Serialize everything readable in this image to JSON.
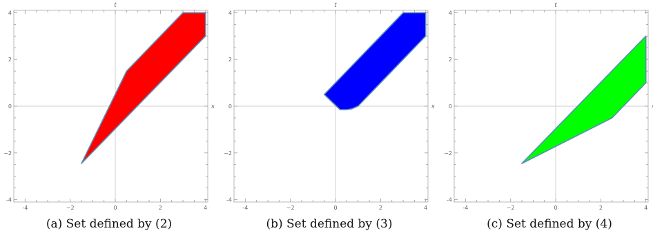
{
  "chart_data": [
    {
      "type": "area",
      "caption": "(a) Set defined by (2)",
      "xlabel": "s",
      "ylabel": "t",
      "xlim": [
        -4.5,
        4.1
      ],
      "ylim": [
        -4.1,
        4.1
      ],
      "xticks": [
        -4,
        -2,
        0,
        2,
        4
      ],
      "yticks": [
        -4,
        -2,
        0,
        2,
        4
      ],
      "x_tick_labels": [
        "-4",
        "−2",
        "0",
        "2",
        "4"
      ],
      "y_tick_labels": [
        "-4",
        "−2",
        "0",
        "2",
        "4"
      ],
      "fill_color": "#ff0000",
      "edge_color": "#5a8fb5",
      "polygon": [
        [
          -1.5,
          -2.45
        ],
        [
          0.5,
          1.5
        ],
        [
          3.0,
          4.0
        ],
        [
          4.0,
          4.0
        ],
        [
          4.0,
          3.0
        ],
        [
          -1.5,
          -2.45
        ]
      ]
    },
    {
      "type": "area",
      "caption": "(b) Set defined by (3)",
      "xlabel": "s",
      "ylabel": "t",
      "xlim": [
        -4.5,
        4.1
      ],
      "ylim": [
        -4.1,
        4.1
      ],
      "xticks": [
        -4,
        -2,
        0,
        2,
        4
      ],
      "yticks": [
        -4,
        -2,
        0,
        2,
        4
      ],
      "x_tick_labels": [
        "-4",
        "−2",
        "0",
        "2",
        "4"
      ],
      "y_tick_labels": [
        "-4",
        "−2",
        "0",
        "2",
        "4"
      ],
      "fill_color": "#0000ff",
      "edge_color": "#5a8fb5",
      "polygon": [
        [
          -0.5,
          0.5
        ],
        [
          3.0,
          4.0
        ],
        [
          4.0,
          4.0
        ],
        [
          4.0,
          3.0
        ],
        [
          1.0,
          0.0
        ],
        [
          0.7,
          -0.12
        ],
        [
          0.5,
          -0.15
        ],
        [
          0.2,
          -0.15
        ],
        [
          -0.5,
          0.5
        ]
      ]
    },
    {
      "type": "area",
      "caption": "(c) Set defined by (4)",
      "xlabel": "s",
      "ylabel": "t",
      "xlim": [
        -4.5,
        4.1
      ],
      "ylim": [
        -4.1,
        4.1
      ],
      "xticks": [
        -4,
        -2,
        0,
        2,
        4
      ],
      "yticks": [
        -4,
        -2,
        0,
        2,
        4
      ],
      "x_tick_labels": [
        "-4",
        "−2",
        "0",
        "2",
        "4"
      ],
      "y_tick_labels": [
        "-4",
        "−2",
        "0",
        "2",
        "4"
      ],
      "fill_color": "#00ff00",
      "edge_color": "#5a8fb5",
      "polygon": [
        [
          -1.5,
          -2.45
        ],
        [
          4.0,
          3.0
        ],
        [
          4.0,
          1.0
        ],
        [
          2.5,
          -0.5
        ],
        [
          -1.5,
          -2.45
        ]
      ]
    }
  ]
}
